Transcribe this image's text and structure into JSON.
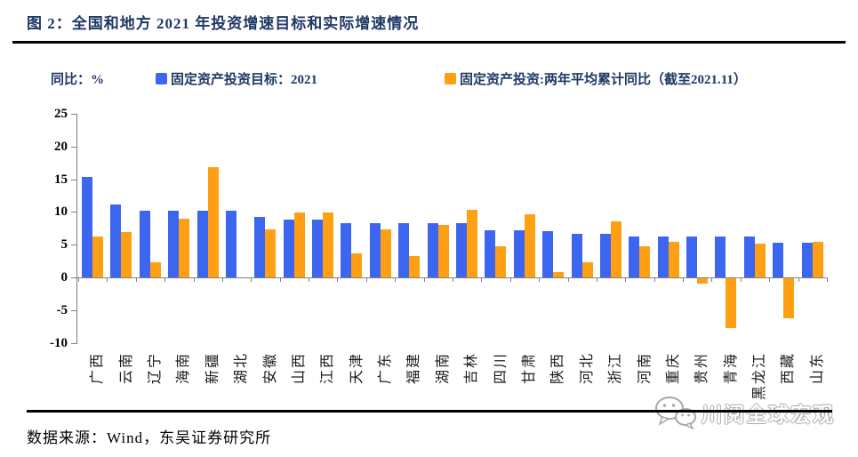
{
  "title": "图 2：全国和地方 2021 年投资增速目标和实际增速情况",
  "footer": {
    "source": "数据来源：Wind，东吴证券研究所"
  },
  "watermark": {
    "text": "川阅全球宏观",
    "icon": "wechat-icon"
  },
  "colors": {
    "heading_navy": "#1F3864",
    "target_blue": "#3C66F0",
    "actual_orange": "#FFA014",
    "axis_gray": "#808080",
    "watermark_gray": "#A8A8A8",
    "rule_black": "#000000"
  },
  "chart_data": {
    "type": "bar",
    "title": "全国和地方 2021 年投资增速目标和实际增速情况",
    "unit_label": "同比：%",
    "xlabel": "",
    "ylabel": "同比：%",
    "ylim": [
      -10,
      25
    ],
    "ytick_step": 5,
    "yticks": [
      25,
      20,
      15,
      10,
      5,
      0,
      -5,
      -10
    ],
    "grid": false,
    "legend_position": "top",
    "categories": [
      "广西",
      "云南",
      "辽宁",
      "海南",
      "新疆",
      "湖北",
      "安徽",
      "山西",
      "江西",
      "天津",
      "广东",
      "福建",
      "湖南",
      "吉林",
      "四川",
      "甘肃",
      "陕西",
      "河北",
      "浙江",
      "河南",
      "重庆",
      "贵州",
      "青海",
      "黑龙江",
      "西藏",
      "山东"
    ],
    "series": [
      {
        "name": "固定资产投资目标：2021",
        "color": "#3C66F0",
        "values": [
          15.3,
          11.2,
          10.2,
          10.2,
          10.2,
          10.2,
          9.3,
          8.8,
          8.8,
          8.3,
          8.3,
          8.3,
          8.3,
          8.3,
          7.2,
          7.2,
          7.1,
          6.7,
          6.6,
          6.2,
          6.2,
          6.2,
          6.2,
          6.2,
          5.3,
          5.3
        ]
      },
      {
        "name": "固定资产投资:两年平均累计同比（截至2021.11）",
        "color": "#FFA014",
        "values": [
          6.3,
          6.9,
          2.3,
          9.0,
          16.8,
          0,
          7.3,
          9.9,
          9.9,
          3.7,
          7.3,
          3.3,
          8.0,
          10.3,
          4.8,
          9.7,
          0.8,
          2.3,
          8.5,
          4.7,
          5.4,
          -0.8,
          -7.6,
          5.2,
          -6.1,
          5.5
        ]
      }
    ]
  }
}
